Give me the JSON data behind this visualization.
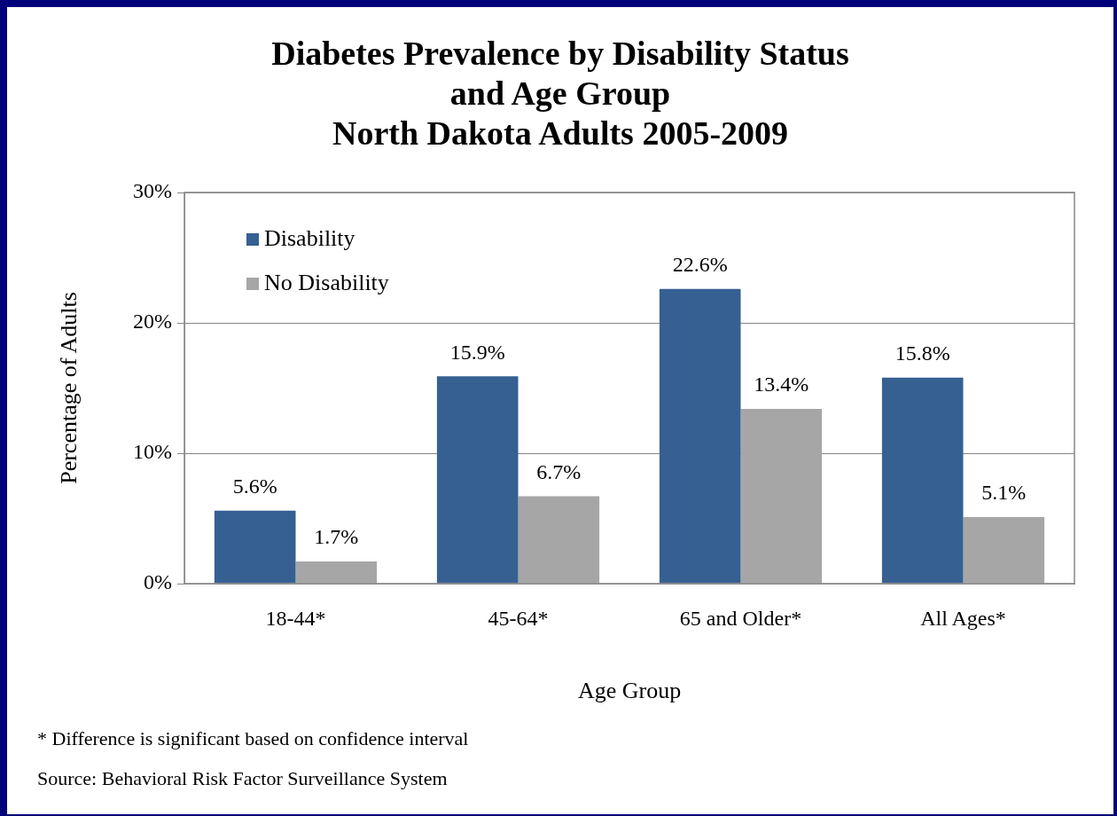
{
  "chart_data": {
    "type": "bar",
    "title": "Diabetes Prevalence by Disability Status\nand Age Group\nNorth Dakota Adults 2005-2009",
    "xlabel": "Age Group",
    "ylabel": "Percentage of Adults",
    "categories": [
      "18-44*",
      "45-64*",
      "65 and Older*",
      "All Ages*"
    ],
    "series": [
      {
        "name": "Disability",
        "color": "#366092",
        "values": [
          5.6,
          15.9,
          22.6,
          15.8
        ],
        "value_labels": [
          "5.6%",
          "15.9%",
          "22.6%",
          "15.8%"
        ]
      },
      {
        "name": "No Disability",
        "color": "#a6a6a6",
        "values": [
          1.7,
          6.7,
          13.4,
          5.1
        ],
        "value_labels": [
          "1.7%",
          "6.7%",
          "13.4%",
          "5.1%"
        ]
      }
    ],
    "ylim": [
      0,
      30
    ],
    "yticks": [
      {
        "value": 0,
        "label": "0%"
      },
      {
        "value": 10,
        "label": "10%"
      },
      {
        "value": 20,
        "label": "20%"
      },
      {
        "value": 30,
        "label": "30%"
      }
    ],
    "grid": "y",
    "legend": "top left",
    "annotations": [
      "* Difference is significant based on confidence interval",
      "Source: Behavioral Risk Factor Surveillance System"
    ]
  }
}
